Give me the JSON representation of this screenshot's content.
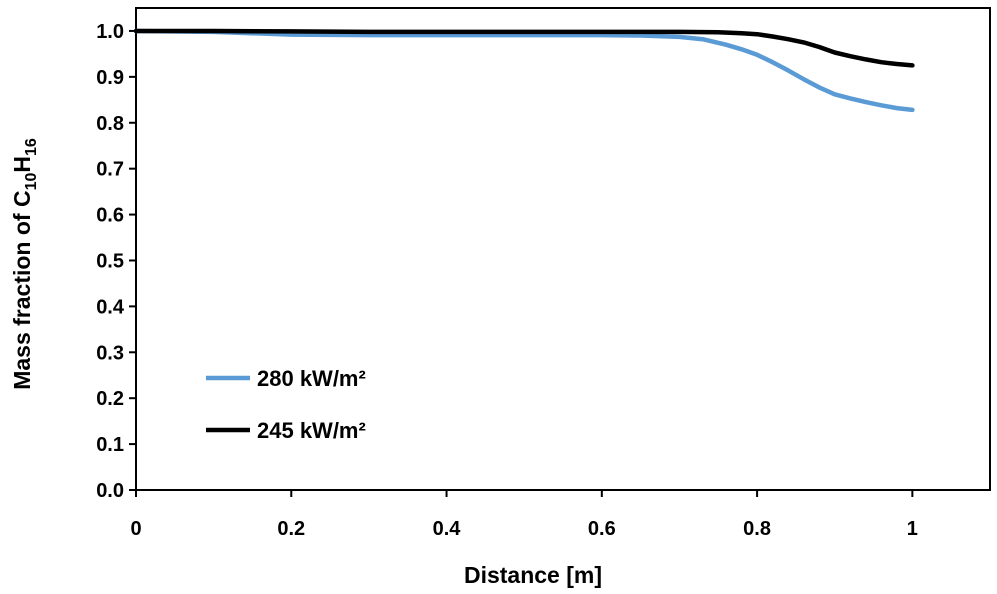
{
  "chart_data": {
    "type": "line",
    "xlabel": "Distance [m]",
    "ylabel": {
      "prefix": "Mass fraction of C",
      "sub1": "10",
      "mid": "H",
      "sub2": "16"
    },
    "xlim": [
      0,
      1.1
    ],
    "ylim": [
      0,
      1.05
    ],
    "xticks": [
      {
        "value": 0,
        "label": "0"
      },
      {
        "value": 0.2,
        "label": "0.2"
      },
      {
        "value": 0.4,
        "label": "0.4"
      },
      {
        "value": 0.6,
        "label": "0.6"
      },
      {
        "value": 0.8,
        "label": "0.8"
      },
      {
        "value": 1,
        "label": "1"
      }
    ],
    "yticks": [
      {
        "value": 0.0,
        "label": "0.0"
      },
      {
        "value": 0.1,
        "label": "0.1"
      },
      {
        "value": 0.2,
        "label": "0.2"
      },
      {
        "value": 0.3,
        "label": "0.3"
      },
      {
        "value": 0.4,
        "label": "0.4"
      },
      {
        "value": 0.5,
        "label": "0.5"
      },
      {
        "value": 0.6,
        "label": "0.6"
      },
      {
        "value": 0.7,
        "label": "0.7"
      },
      {
        "value": 0.8,
        "label": "0.8"
      },
      {
        "value": 0.9,
        "label": "0.9"
      },
      {
        "value": 1.0,
        "label": "1.0"
      }
    ],
    "grid": false,
    "legend": "lower-left inside",
    "series": [
      {
        "name": "280 kW/m²",
        "color": "#5b9bd5",
        "x": [
          0,
          0.1,
          0.2,
          0.3,
          0.4,
          0.5,
          0.6,
          0.65,
          0.7,
          0.73,
          0.76,
          0.78,
          0.8,
          0.82,
          0.84,
          0.86,
          0.88,
          0.9,
          0.92,
          0.94,
          0.96,
          0.98,
          1.0
        ],
        "y": [
          1.0,
          0.998,
          0.992,
          0.991,
          0.991,
          0.991,
          0.991,
          0.99,
          0.987,
          0.982,
          0.97,
          0.96,
          0.948,
          0.932,
          0.914,
          0.895,
          0.877,
          0.862,
          0.853,
          0.845,
          0.838,
          0.832,
          0.828
        ]
      },
      {
        "name": "245 kW/m²",
        "color": "#000000",
        "x": [
          0,
          0.1,
          0.2,
          0.3,
          0.4,
          0.5,
          0.6,
          0.7,
          0.75,
          0.78,
          0.8,
          0.82,
          0.84,
          0.86,
          0.88,
          0.9,
          0.92,
          0.94,
          0.96,
          0.98,
          1.0
        ],
        "y": [
          1.0,
          1.0,
          0.999,
          0.998,
          0.998,
          0.998,
          0.998,
          0.998,
          0.997,
          0.995,
          0.993,
          0.988,
          0.982,
          0.975,
          0.965,
          0.953,
          0.945,
          0.938,
          0.932,
          0.928,
          0.925
        ]
      }
    ]
  }
}
